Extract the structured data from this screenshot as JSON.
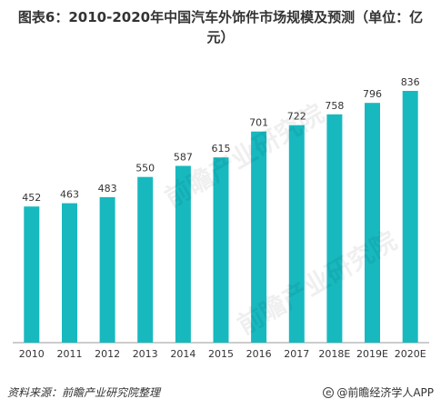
{
  "chart_data": {
    "type": "bar",
    "title": "图表6：2010-2020年中国汽车外饰件市场规模及预测（单位：亿元）",
    "categories": [
      "2010",
      "2011",
      "2012",
      "2013",
      "2014",
      "2015",
      "2016",
      "2017",
      "2018E",
      "2019E",
      "2020E"
    ],
    "values": [
      452,
      463,
      483,
      550,
      587,
      615,
      701,
      722,
      758,
      796,
      836
    ],
    "bar_color": "#17b9bf",
    "ylim": [
      0,
      860
    ],
    "grid": false,
    "legend": "none"
  },
  "footer": {
    "source": "资料来源：前瞻产业研究院整理",
    "brand": "@前瞻经济学人APP"
  },
  "watermark": {
    "text": "前瞻产业研究院"
  },
  "colors": {
    "bar": "#17b9bf",
    "axis": "#999999",
    "text": "#333333"
  }
}
